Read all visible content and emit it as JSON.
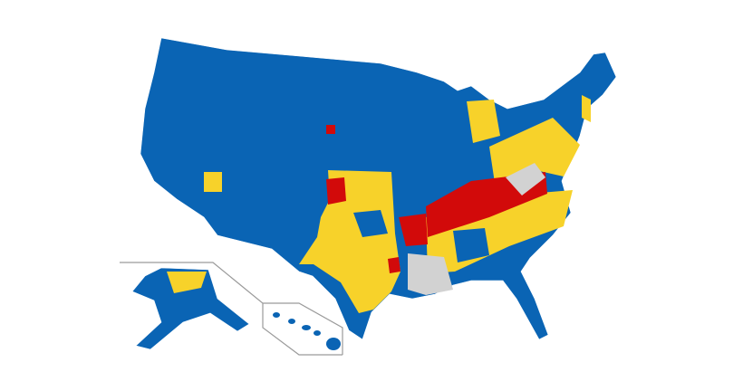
{
  "map": {
    "colors": [
      "#0a64b4",
      "#f7d22a",
      "#d20a0a",
      "#d2d2d2"
    ]
  }
}
